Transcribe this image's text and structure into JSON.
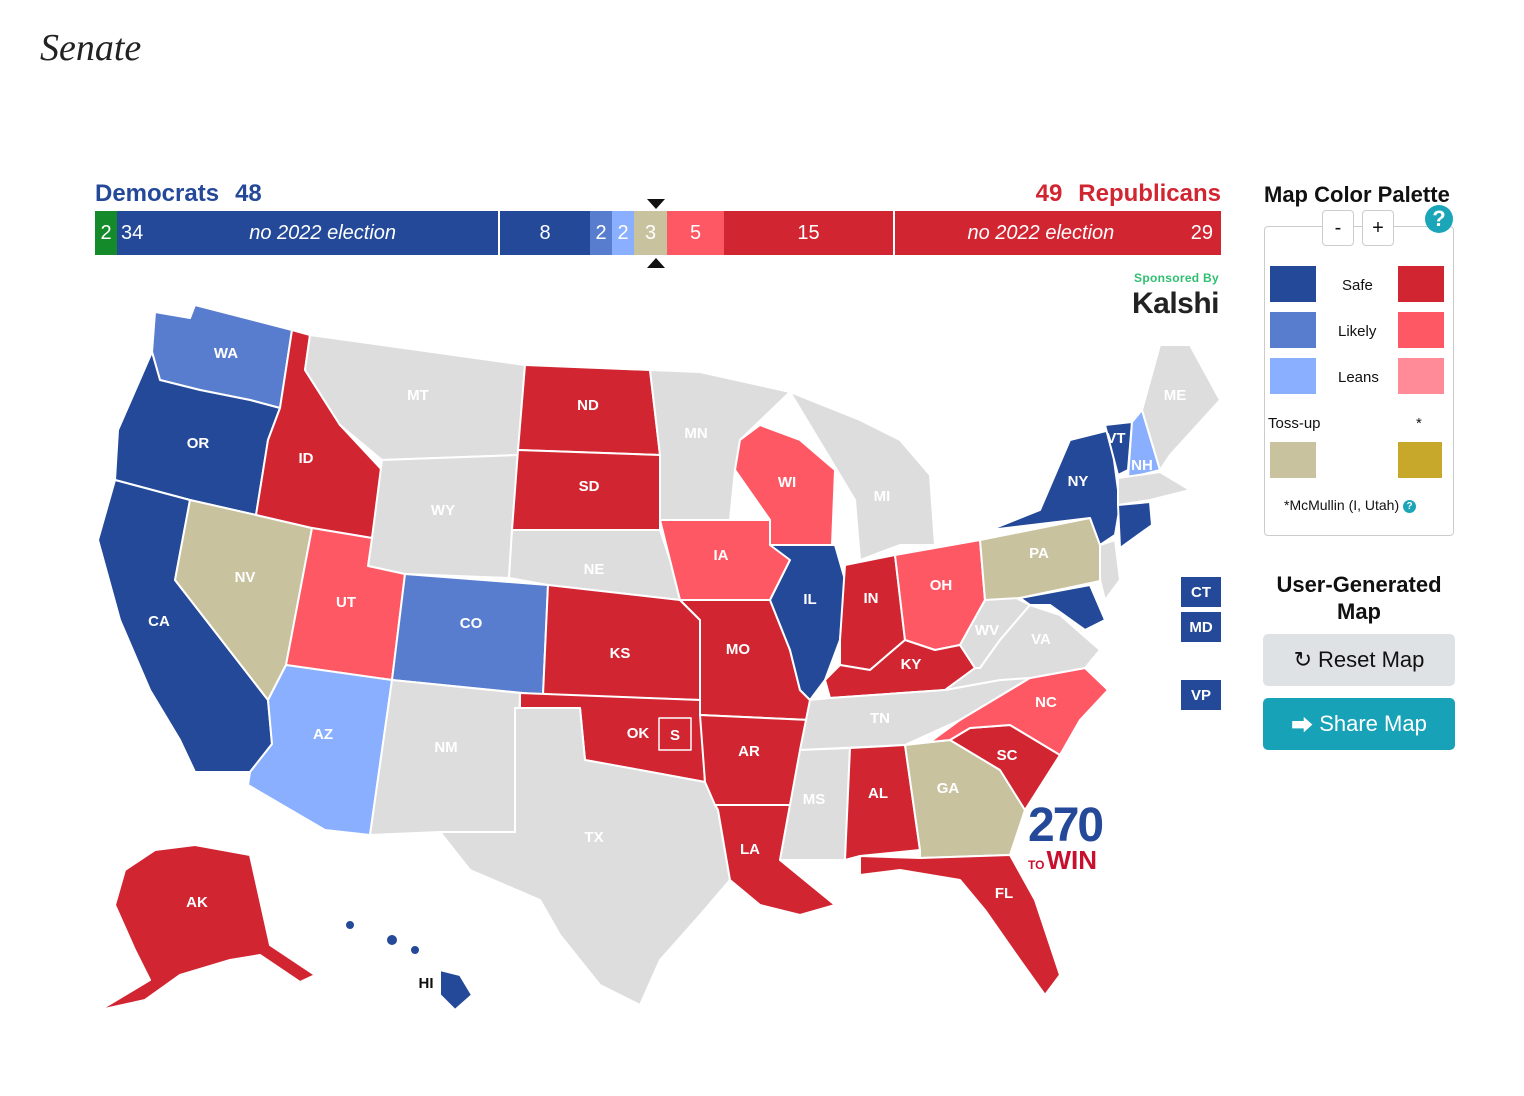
{
  "page_title": "Senate",
  "header": {
    "dem_label": "Democrats",
    "dem_total": "48",
    "rep_label": "Republicans",
    "rep_total": "49"
  },
  "bar": {
    "segments": [
      {
        "value": "2",
        "color": "#158a2b"
      },
      {
        "value": "34",
        "note": "no 2022 election",
        "color": "#244999"
      },
      {
        "value": "8",
        "color": "#244999"
      },
      {
        "value": "2",
        "color": "#597dce"
      },
      {
        "value": "2",
        "color": "#8aaffe"
      },
      {
        "value": "3",
        "color": "#c9c29f"
      },
      {
        "value": "5",
        "color": "#ff5865"
      },
      {
        "value": "15",
        "color": "#d22532"
      },
      {
        "value": "29",
        "note": "no 2022 election",
        "color": "#d22532"
      }
    ]
  },
  "sponsor": {
    "by": "Sponsored By",
    "brand": "Kalshi"
  },
  "colors": {
    "safe_dem": "#244999",
    "likely_dem": "#597dce",
    "leans_dem": "#8aaffe",
    "tossup": "#c9c29f",
    "mcmullin": "#c8a82a",
    "leans_rep": "#ff8b98",
    "likely_rep": "#ff5865",
    "safe_rep": "#d22532",
    "no_election": "#dddddd"
  },
  "palette": {
    "title": "Map Color Palette",
    "help_icon": "question-icon",
    "zoom_out": "-",
    "zoom_in": "+",
    "safe": "Safe",
    "likely": "Likely",
    "leans": "Leans",
    "tossup": "Toss-up",
    "asterisk": "*",
    "mcmullin_note": "*McMullin (I, Utah)",
    "mini_help": "?"
  },
  "user_generated": {
    "title": "User-Generated Map",
    "reset_label": "Reset Map",
    "share_label": "Share Map"
  },
  "extra_boxes": {
    "ct": "CT",
    "md": "MD",
    "vp": "VP"
  },
  "logo": {
    "number": "270",
    "to": "TO",
    "win": "WIN"
  },
  "states": [
    {
      "abbr": "WA",
      "rating": "likely_dem"
    },
    {
      "abbr": "OR",
      "rating": "safe_dem"
    },
    {
      "abbr": "CA",
      "rating": "safe_dem"
    },
    {
      "abbr": "NV",
      "rating": "tossup"
    },
    {
      "abbr": "ID",
      "rating": "safe_rep"
    },
    {
      "abbr": "MT",
      "rating": "no_election"
    },
    {
      "abbr": "WY",
      "rating": "no_election"
    },
    {
      "abbr": "UT",
      "rating": "likely_rep"
    },
    {
      "abbr": "AZ",
      "rating": "leans_dem"
    },
    {
      "abbr": "CO",
      "rating": "likely_dem"
    },
    {
      "abbr": "NM",
      "rating": "no_election"
    },
    {
      "abbr": "ND",
      "rating": "safe_rep"
    },
    {
      "abbr": "SD",
      "rating": "safe_rep"
    },
    {
      "abbr": "NE",
      "rating": "no_election"
    },
    {
      "abbr": "KS",
      "rating": "safe_rep"
    },
    {
      "abbr": "OK",
      "rating": "safe_rep"
    },
    {
      "abbr": "TX",
      "rating": "no_election"
    },
    {
      "abbr": "MN",
      "rating": "no_election"
    },
    {
      "abbr": "IA",
      "rating": "likely_rep"
    },
    {
      "abbr": "MO",
      "rating": "safe_rep"
    },
    {
      "abbr": "AR",
      "rating": "safe_rep"
    },
    {
      "abbr": "LA",
      "rating": "safe_rep"
    },
    {
      "abbr": "WI",
      "rating": "likely_rep"
    },
    {
      "abbr": "IL",
      "rating": "safe_dem"
    },
    {
      "abbr": "MS",
      "rating": "no_election"
    },
    {
      "abbr": "MI",
      "rating": "no_election"
    },
    {
      "abbr": "IN",
      "rating": "safe_rep"
    },
    {
      "abbr": "KY",
      "rating": "safe_rep"
    },
    {
      "abbr": "TN",
      "rating": "no_election"
    },
    {
      "abbr": "AL",
      "rating": "safe_rep"
    },
    {
      "abbr": "OH",
      "rating": "likely_rep"
    },
    {
      "abbr": "GA",
      "rating": "tossup"
    },
    {
      "abbr": "FL",
      "rating": "safe_rep"
    },
    {
      "abbr": "SC",
      "rating": "safe_rep"
    },
    {
      "abbr": "NC",
      "rating": "likely_rep"
    },
    {
      "abbr": "WV",
      "rating": "no_election"
    },
    {
      "abbr": "VA",
      "rating": "no_election"
    },
    {
      "abbr": "PA",
      "rating": "tossup"
    },
    {
      "abbr": "NY",
      "rating": "safe_dem"
    },
    {
      "abbr": "VT",
      "rating": "safe_dem"
    },
    {
      "abbr": "NH",
      "rating": "leans_dem"
    },
    {
      "abbr": "ME",
      "rating": "no_election"
    },
    {
      "abbr": "AK",
      "rating": "safe_rep"
    },
    {
      "abbr": "HI",
      "rating": "safe_dem"
    },
    {
      "abbr": "S",
      "rating": "safe_rep"
    }
  ]
}
